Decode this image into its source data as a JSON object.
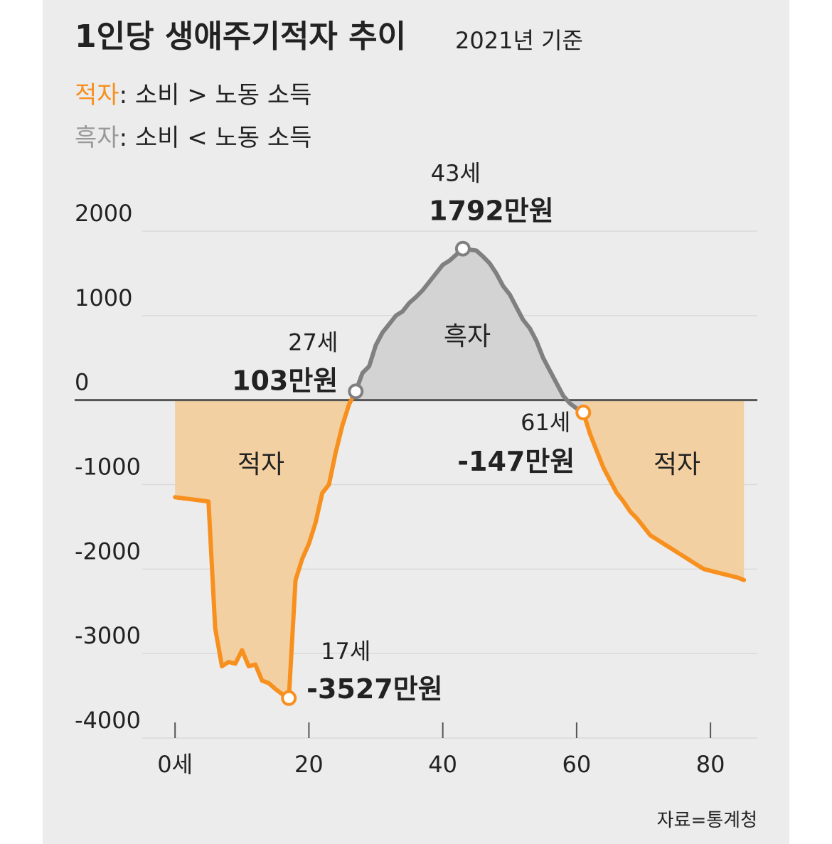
{
  "chart_data": {
    "type": "line",
    "title": "1인당 생애주기적자 추이",
    "subtitle": "2021년 기준",
    "source": "자료=통계청",
    "x": [
      0,
      1,
      2,
      3,
      4,
      5,
      6,
      7,
      8,
      9,
      10,
      11,
      12,
      13,
      14,
      15,
      16,
      17,
      18,
      19,
      20,
      21,
      22,
      23,
      24,
      25,
      26,
      27,
      28,
      29,
      30,
      31,
      32,
      33,
      34,
      35,
      36,
      37,
      38,
      39,
      40,
      41,
      42,
      43,
      44,
      45,
      46,
      47,
      48,
      49,
      50,
      51,
      52,
      53,
      54,
      55,
      56,
      57,
      58,
      59,
      60,
      61,
      62,
      63,
      64,
      65,
      66,
      67,
      68,
      69,
      70,
      71,
      72,
      73,
      74,
      75,
      76,
      77,
      78,
      79,
      80,
      81,
      82,
      83,
      84,
      85
    ],
    "series": [
      {
        "name": "적자",
        "description": ": 소비 > 노동 소득",
        "color": "#f7901e",
        "fill": "#f2d0a2",
        "values": [
          -1150,
          -1160,
          -1170,
          -1180,
          -1190,
          -1200,
          -2700,
          -3150,
          -3100,
          -3120,
          -2960,
          -3150,
          -3130,
          -3320,
          -3350,
          -3420,
          -3480,
          -3527,
          -2130,
          -1880,
          -1700,
          -1450,
          -1100,
          -1000,
          -620,
          -300,
          -50,
          103,
          null,
          null,
          null,
          null,
          null,
          null,
          null,
          null,
          null,
          null,
          null,
          null,
          null,
          null,
          null,
          null,
          null,
          null,
          null,
          null,
          null,
          null,
          null,
          null,
          null,
          null,
          null,
          null,
          null,
          null,
          null,
          null,
          null,
          -147,
          -400,
          -600,
          -800,
          -950,
          -1100,
          -1200,
          -1320,
          -1400,
          -1500,
          -1600,
          -1650,
          -1700,
          -1750,
          -1800,
          -1850,
          -1900,
          -1950,
          -2000,
          -2020,
          -2040,
          -2060,
          -2080,
          -2100,
          -2130
        ]
      },
      {
        "name": "흑자",
        "description": ": 소비 < 노동 소득",
        "color": "#808080",
        "fill": "#d3d3d3",
        "values": [
          null,
          null,
          null,
          null,
          null,
          null,
          null,
          null,
          null,
          null,
          null,
          null,
          null,
          null,
          null,
          null,
          null,
          null,
          null,
          null,
          null,
          null,
          null,
          null,
          null,
          null,
          null,
          103,
          320,
          400,
          650,
          800,
          900,
          1000,
          1050,
          1150,
          1220,
          1300,
          1400,
          1500,
          1600,
          1650,
          1720,
          1792,
          1780,
          1770,
          1700,
          1620,
          1500,
          1350,
          1250,
          1100,
          950,
          850,
          700,
          500,
          350,
          200,
          50,
          -40,
          -100,
          -147,
          null,
          null,
          null,
          null,
          null,
          null,
          null,
          null,
          null,
          null,
          null,
          null,
          null,
          null,
          null,
          null,
          null,
          null,
          null,
          null,
          null,
          null,
          null,
          null
        ]
      }
    ],
    "area_labels": [
      "적자",
      "흑자",
      "적자"
    ],
    "annotations": [
      {
        "x": 17,
        "y": -3527,
        "age_label": "17세",
        "value_label": "-3527만원",
        "color": "#f7901e"
      },
      {
        "x": 27,
        "y": 103,
        "age_label": "27세",
        "value_label": "103만원",
        "color": "#808080"
      },
      {
        "x": 43,
        "y": 1792,
        "age_label": "43세",
        "value_label": "1792만원",
        "color": "#808080"
      },
      {
        "x": 61,
        "y": -147,
        "age_label": "61세",
        "value_label": "-147만원",
        "color": "#f7901e"
      }
    ],
    "xlim": [
      -15,
      87
    ],
    "ylim": [
      -4000,
      2000
    ],
    "xticks": [
      {
        "value": 0,
        "label": "0세"
      },
      20,
      40,
      60,
      80
    ],
    "yticks": [
      -4000,
      -3000,
      -2000,
      -1000,
      0,
      1000,
      2000
    ],
    "grid": true
  }
}
